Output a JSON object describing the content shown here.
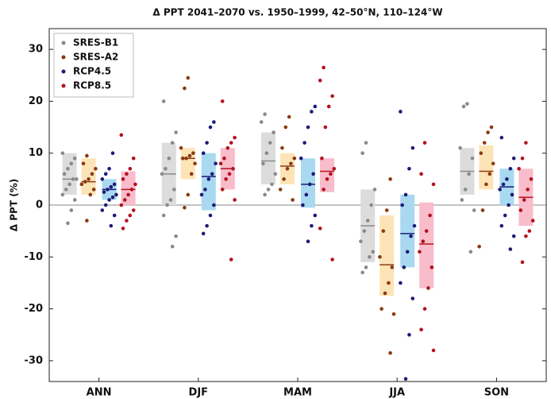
{
  "chart_data": {
    "type": "range_dot",
    "title": "Δ PPT 2041–2070 vs. 1950–1999, 42–50°N, 110–124°W",
    "y_label": "Δ PPT (%)",
    "categories": [
      "ANN",
      "DJF",
      "MAM",
      "JJA",
      "SON"
    ],
    "ylim": [
      -34,
      34
    ],
    "yticks": [
      -30,
      -20,
      -10,
      0,
      10,
      20,
      30
    ],
    "legend": "upper left",
    "series": [
      {
        "name": "SRES-B1",
        "color": "#8a8a8a",
        "box_color": "#dcdcdc",
        "low": [
          2,
          0,
          4,
          -11,
          2
        ],
        "high": [
          10,
          12,
          14,
          3,
          11
        ],
        "median": [
          5,
          6,
          8.5,
          -4,
          6.5
        ],
        "points": [
          [
            10,
            9,
            8,
            7,
            6,
            5,
            5,
            4,
            3,
            2,
            1,
            -1,
            -3.5
          ],
          [
            20,
            14,
            12,
            9,
            7,
            6,
            3,
            1,
            0,
            -2,
            -6,
            -8
          ],
          [
            17.5,
            16,
            14,
            12,
            10,
            8,
            6,
            4,
            3,
            2
          ],
          [
            12,
            10,
            3,
            0,
            -3,
            -5,
            -7,
            -9,
            -10,
            -12,
            -13
          ],
          [
            19.5,
            19,
            11,
            9,
            6,
            3,
            1,
            -1,
            -9
          ]
        ]
      },
      {
        "name": "SRES-A2",
        "color": "#8b3a10",
        "box_color": "#fde4b6",
        "low": [
          2,
          5,
          4,
          -17.5,
          3
        ],
        "high": [
          9,
          11,
          10,
          -2,
          11.5
        ],
        "median": [
          4.5,
          9,
          7.5,
          -11.5,
          6.5
        ],
        "points": [
          [
            9.5,
            8,
            7,
            6,
            5,
            4.5,
            4,
            3,
            2,
            -3
          ],
          [
            24.5,
            22.5,
            11,
            10,
            9.5,
            9,
            9,
            8,
            6,
            2,
            -0.5
          ],
          [
            17,
            15,
            11,
            9,
            8,
            7,
            5,
            3,
            1
          ],
          [
            5,
            -1,
            -5,
            -10,
            -12,
            -15,
            -17,
            -20,
            -21,
            -28.5
          ],
          [
            15,
            14,
            12,
            10,
            8,
            6,
            4,
            -1,
            -8
          ]
        ]
      },
      {
        "name": "RCP4.5",
        "color": "#1c1c78",
        "box_color": "#a9d9f1",
        "low": [
          1,
          -1,
          -0.5,
          -12,
          0
        ],
        "high": [
          5,
          10,
          9,
          2,
          7
        ],
        "median": [
          3,
          5.5,
          4,
          -5.5,
          3.5
        ],
        "points": [
          [
            10,
            7,
            6,
            5,
            4,
            3.5,
            3,
            2.5,
            2,
            1.5,
            1,
            0,
            -1,
            -2,
            -4
          ],
          [
            16,
            15,
            12,
            10,
            8,
            6,
            5,
            3,
            2,
            0,
            -2,
            -4,
            -5.5
          ],
          [
            19,
            18,
            15,
            12,
            9,
            6,
            4,
            2,
            0,
            -2,
            -4,
            -7
          ],
          [
            18,
            11,
            7,
            2,
            0,
            -4,
            -6,
            -9,
            -12,
            -15,
            -18,
            -25,
            -33.5
          ],
          [
            13,
            9,
            7,
            5,
            4,
            3,
            2,
            0,
            -2,
            -4,
            -6,
            -8.5
          ]
        ]
      },
      {
        "name": "RCP8.5",
        "color": "#b3121e",
        "box_color": "#f9bccb",
        "low": [
          0,
          3,
          2.5,
          -16,
          -4
        ],
        "high": [
          6.5,
          11,
          9,
          0.5,
          7
        ],
        "median": [
          3,
          7,
          6.5,
          -7.5,
          1.5
        ],
        "points": [
          [
            13.5,
            9,
            7,
            6,
            5,
            4,
            3,
            2,
            1,
            0,
            -1,
            -2,
            -3,
            -4.5
          ],
          [
            20,
            13,
            12,
            11,
            9,
            8,
            7,
            6,
            5,
            3,
            1,
            -10.5
          ],
          [
            26.5,
            24,
            21,
            19,
            15,
            9,
            7,
            6,
            5,
            3,
            -4.5,
            -10.5
          ],
          [
            12,
            6,
            4,
            -2,
            -5,
            -7,
            -9,
            -12,
            -16,
            -20,
            -24,
            -28
          ],
          [
            12,
            9,
            7,
            5,
            3,
            1,
            -1,
            -3,
            -5,
            -6,
            -11
          ]
        ]
      }
    ]
  }
}
